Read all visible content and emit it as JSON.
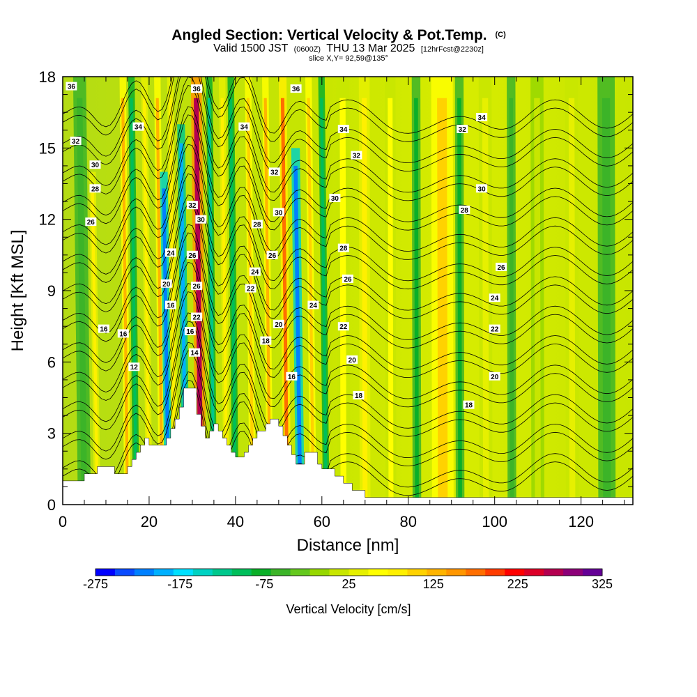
{
  "title": {
    "main": "Angled Section: Vertical Velocity & Pot.Temp.",
    "mark": "(C)",
    "valid_prefix": "Valid 1500 JST",
    "valid_utc": "(0600Z)",
    "valid_date": "THU 13 Mar 2025",
    "forecast": "[12hrFcst@2230z]",
    "slice": "slice X,Y= 92,59@135°"
  },
  "colors": {
    "background": "#ffffff",
    "frame": "#000000",
    "contour": "#000000",
    "terrain": "#ffffff"
  },
  "chart_data": {
    "type": "heatmap",
    "title": "Angled Section: Vertical Velocity & Pot.Temp.",
    "xlabel": "Distance [nm]",
    "ylabel": "Height [Kft MSL]",
    "xlim": [
      0,
      132
    ],
    "ylim": [
      0,
      18
    ],
    "x_ticks": [
      0,
      20,
      40,
      60,
      80,
      100,
      120
    ],
    "y_ticks": [
      0,
      3,
      6,
      9,
      12,
      15,
      18
    ],
    "x_tick_labels": [
      "0",
      "20",
      "40",
      "60",
      "80",
      "100",
      "120"
    ],
    "y_tick_labels": [
      "0",
      "3",
      "6",
      "9",
      "12",
      "15",
      "18"
    ],
    "grid": false,
    "colorbar": {
      "label": "Vertical Velocity [cm/s]",
      "min": -275,
      "max": 325,
      "step": 25,
      "tick_values": [
        -275,
        -175,
        -75,
        25,
        125,
        225,
        325
      ],
      "tick_labels": [
        "-275",
        "-175",
        "-75",
        "25",
        "125",
        "225",
        "325"
      ],
      "colors": [
        "#0000ff",
        "#0a4bff",
        "#0080ff",
        "#00b0ff",
        "#00e0ff",
        "#00d2c2",
        "#00c88c",
        "#00be5a",
        "#0aaf28",
        "#3cb428",
        "#64c81e",
        "#96d700",
        "#c8e600",
        "#e6f000",
        "#ffff00",
        "#fff000",
        "#ffd200",
        "#ffb400",
        "#ff9600",
        "#ff6e00",
        "#ff3c00",
        "#ff0000",
        "#dc0028",
        "#b40050",
        "#8c0078",
        "#640096"
      ]
    },
    "vertical_velocity_features": [
      {
        "x": 5,
        "width": 3,
        "value": -50
      },
      {
        "x": 8,
        "width": 1.5,
        "value": 100,
        "top": 14
      },
      {
        "x": 15,
        "width": 1.5,
        "value": 150,
        "top": 18
      },
      {
        "x": 17,
        "width": 1.5,
        "value": -100,
        "top": 18
      },
      {
        "x": 20,
        "width": 1.5,
        "value": 100,
        "top": 18
      },
      {
        "x": 23,
        "width": 1.5,
        "value": 150,
        "top": 18
      },
      {
        "x": 24.5,
        "width": 1.8,
        "value": -225,
        "top": 14
      },
      {
        "x": 26,
        "width": 1.5,
        "value": 100,
        "top": 18
      },
      {
        "x": 28.5,
        "width": 1.8,
        "value": -200,
        "top": 16
      },
      {
        "x": 32,
        "width": 2.5,
        "value": 300,
        "top": 18
      },
      {
        "x": 35,
        "width": 1.5,
        "value": -125,
        "top": 18
      },
      {
        "x": 38,
        "width": 1.5,
        "value": 100,
        "top": 18
      },
      {
        "x": 40,
        "width": 1.5,
        "value": -100,
        "top": 18
      },
      {
        "x": 44,
        "width": 1.5,
        "value": 125,
        "top": 18
      },
      {
        "x": 48,
        "width": 1.5,
        "value": 150,
        "top": 18
      },
      {
        "x": 52,
        "width": 1.8,
        "value": 200,
        "top": 18
      },
      {
        "x": 55,
        "width": 2,
        "value": -225,
        "top": 15
      },
      {
        "x": 58,
        "width": 1.5,
        "value": 125,
        "top": 18
      },
      {
        "x": 61,
        "width": 1.5,
        "value": -100,
        "top": 18
      },
      {
        "x": 65,
        "width": 3,
        "value": 75,
        "top": 18
      },
      {
        "x": 70,
        "width": 2.5,
        "value": 100,
        "top": 18
      },
      {
        "x": 76,
        "width": 2.5,
        "value": 75,
        "top": 18
      },
      {
        "x": 82,
        "width": 2,
        "value": -75,
        "top": 18
      },
      {
        "x": 88,
        "width": 5,
        "value": 125,
        "top": 18
      },
      {
        "x": 92,
        "width": 2,
        "value": -75,
        "top": 18
      },
      {
        "x": 98,
        "width": 3,
        "value": 50,
        "top": 18
      },
      {
        "x": 104,
        "width": 2,
        "value": -50,
        "top": 18
      },
      {
        "x": 110,
        "width": 3,
        "value": 25,
        "top": 18
      },
      {
        "x": 118,
        "width": 3,
        "value": 50,
        "top": 18
      },
      {
        "x": 126,
        "width": 4,
        "value": -50,
        "top": 18
      }
    ],
    "potential_temperature_isentropes_C": [
      12,
      14,
      16,
      18,
      20,
      22,
      24,
      26,
      28,
      30,
      32,
      34,
      36
    ],
    "isentrope_labels": [
      {
        "x": 2,
        "y": 17.6,
        "text": "36"
      },
      {
        "x": 3,
        "y": 15.3,
        "text": "32"
      },
      {
        "x": 7.5,
        "y": 14.3,
        "text": "30"
      },
      {
        "x": 7.5,
        "y": 13.3,
        "text": "28"
      },
      {
        "x": 6.5,
        "y": 11.9,
        "text": "26"
      },
      {
        "x": 17.5,
        "y": 15.9,
        "text": "34"
      },
      {
        "x": 31,
        "y": 17.5,
        "text": "36"
      },
      {
        "x": 42,
        "y": 15.9,
        "text": "34"
      },
      {
        "x": 54,
        "y": 17.5,
        "text": "36"
      },
      {
        "x": 30,
        "y": 12.6,
        "text": "32"
      },
      {
        "x": 32,
        "y": 12.0,
        "text": "30"
      },
      {
        "x": 49,
        "y": 14.0,
        "text": "32"
      },
      {
        "x": 50,
        "y": 12.3,
        "text": "30"
      },
      {
        "x": 45,
        "y": 11.8,
        "text": "28"
      },
      {
        "x": 25,
        "y": 10.6,
        "text": "24"
      },
      {
        "x": 30,
        "y": 10.5,
        "text": "26"
      },
      {
        "x": 48.5,
        "y": 10.5,
        "text": "26"
      },
      {
        "x": 44.5,
        "y": 9.8,
        "text": "24"
      },
      {
        "x": 24,
        "y": 9.3,
        "text": "20"
      },
      {
        "x": 31,
        "y": 9.2,
        "text": "26"
      },
      {
        "x": 43.5,
        "y": 9.1,
        "text": "22"
      },
      {
        "x": 25,
        "y": 8.4,
        "text": "16"
      },
      {
        "x": 31,
        "y": 7.9,
        "text": "22"
      },
      {
        "x": 58,
        "y": 8.4,
        "text": "24"
      },
      {
        "x": 50,
        "y": 7.6,
        "text": "20"
      },
      {
        "x": 9.5,
        "y": 7.4,
        "text": "16"
      },
      {
        "x": 14,
        "y": 7.2,
        "text": "16"
      },
      {
        "x": 29.5,
        "y": 7.3,
        "text": "16"
      },
      {
        "x": 47,
        "y": 6.9,
        "text": "18"
      },
      {
        "x": 30.5,
        "y": 6.4,
        "text": "14"
      },
      {
        "x": 16.5,
        "y": 5.8,
        "text": "12"
      },
      {
        "x": 53,
        "y": 5.4,
        "text": "16"
      },
      {
        "x": 65,
        "y": 15.8,
        "text": "34"
      },
      {
        "x": 68,
        "y": 14.7,
        "text": "32"
      },
      {
        "x": 63,
        "y": 12.9,
        "text": "30"
      },
      {
        "x": 65,
        "y": 10.8,
        "text": "28"
      },
      {
        "x": 66,
        "y": 9.5,
        "text": "26"
      },
      {
        "x": 65,
        "y": 7.5,
        "text": "22"
      },
      {
        "x": 67,
        "y": 6.1,
        "text": "20"
      },
      {
        "x": 68.5,
        "y": 4.6,
        "text": "18"
      },
      {
        "x": 92.5,
        "y": 15.8,
        "text": "32"
      },
      {
        "x": 97,
        "y": 16.3,
        "text": "34"
      },
      {
        "x": 97,
        "y": 13.3,
        "text": "30"
      },
      {
        "x": 93,
        "y": 12.4,
        "text": "28"
      },
      {
        "x": 101.5,
        "y": 10.0,
        "text": "26"
      },
      {
        "x": 100,
        "y": 8.7,
        "text": "24"
      },
      {
        "x": 100,
        "y": 7.4,
        "text": "22"
      },
      {
        "x": 100,
        "y": 5.4,
        "text": "20"
      },
      {
        "x": 94,
        "y": 4.2,
        "text": "18"
      }
    ],
    "terrain_profile": [
      [
        0,
        1.0
      ],
      [
        5,
        1.0
      ],
      [
        5,
        1.3
      ],
      [
        8,
        1.3
      ],
      [
        8,
        1.6
      ],
      [
        12,
        1.6
      ],
      [
        12,
        1.3
      ],
      [
        15,
        1.3
      ],
      [
        15,
        1.6
      ],
      [
        16,
        1.6
      ],
      [
        16,
        1.9
      ],
      [
        17,
        1.9
      ],
      [
        17,
        2.2
      ],
      [
        18,
        2.2
      ],
      [
        18,
        2.5
      ],
      [
        19,
        2.5
      ],
      [
        19,
        2.8
      ],
      [
        20,
        2.8
      ],
      [
        20,
        2.5
      ],
      [
        24,
        2.5
      ],
      [
        24,
        2.8
      ],
      [
        25,
        2.8
      ],
      [
        25,
        3.2
      ],
      [
        26,
        3.2
      ],
      [
        26,
        3.6
      ],
      [
        27,
        3.6
      ],
      [
        27,
        4.1
      ],
      [
        28,
        4.1
      ],
      [
        28,
        4.9
      ],
      [
        31,
        4.9
      ],
      [
        31,
        3.8
      ],
      [
        32,
        3.8
      ],
      [
        32,
        3.3
      ],
      [
        33,
        3.3
      ],
      [
        33,
        2.8
      ],
      [
        34,
        2.8
      ],
      [
        34,
        3.1
      ],
      [
        35,
        3.1
      ],
      [
        35,
        3.4
      ],
      [
        36,
        3.4
      ],
      [
        36,
        3.1
      ],
      [
        37,
        3.1
      ],
      [
        37,
        2.8
      ],
      [
        38,
        2.8
      ],
      [
        38,
        2.5
      ],
      [
        39,
        2.5
      ],
      [
        39,
        2.2
      ],
      [
        40,
        2.2
      ],
      [
        40,
        2.0
      ],
      [
        42,
        2.0
      ],
      [
        42,
        2.2
      ],
      [
        43,
        2.2
      ],
      [
        43,
        2.5
      ],
      [
        44,
        2.5
      ],
      [
        44,
        2.8
      ],
      [
        45,
        2.8
      ],
      [
        45,
        3.1
      ],
      [
        47,
        3.1
      ],
      [
        47,
        3.4
      ],
      [
        48,
        3.4
      ],
      [
        48,
        3.6
      ],
      [
        50,
        3.6
      ],
      [
        50,
        3.3
      ],
      [
        51,
        3.3
      ],
      [
        51,
        2.9
      ],
      [
        52,
        2.9
      ],
      [
        52,
        2.5
      ],
      [
        53,
        2.5
      ],
      [
        53,
        2.1
      ],
      [
        54,
        2.1
      ],
      [
        54,
        1.7
      ],
      [
        56,
        1.7
      ],
      [
        56,
        2.2
      ],
      [
        59,
        2.2
      ],
      [
        59,
        1.7
      ],
      [
        60,
        1.7
      ],
      [
        60,
        1.5
      ],
      [
        63,
        1.5
      ],
      [
        63,
        1.2
      ],
      [
        65,
        1.2
      ],
      [
        65,
        0.9
      ],
      [
        67,
        0.9
      ],
      [
        67,
        0.6
      ],
      [
        70,
        0.6
      ],
      [
        70,
        0.3
      ],
      [
        132,
        0.3
      ],
      [
        132,
        0
      ],
      [
        0,
        0
      ]
    ]
  }
}
